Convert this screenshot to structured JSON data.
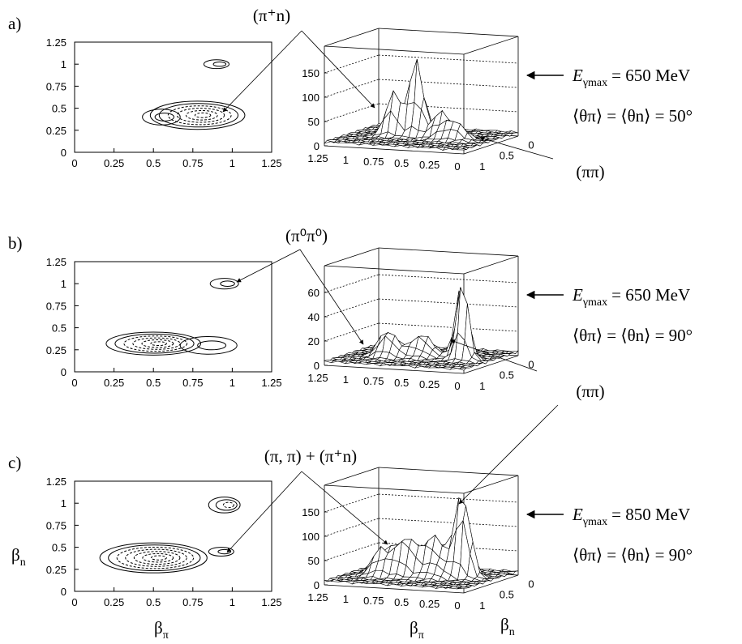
{
  "panels": [
    {
      "label": "a)",
      "annotation": "(π⁺n)",
      "contour": {
        "xticks": [
          0,
          0.25,
          0.5,
          0.75,
          1,
          1.25
        ],
        "yticks": [
          0,
          0.25,
          0.5,
          0.75,
          1,
          1.25
        ]
      },
      "surface": {
        "zticks": [
          0,
          50,
          100,
          150
        ],
        "xticks": [
          1.25,
          1,
          0.75,
          0.5,
          0.25,
          0
        ],
        "yticks": [
          1,
          0.5,
          0
        ]
      },
      "energy": {
        "symbol": "E",
        "subscript": "γmax",
        "text": "= 650 MeV"
      },
      "angles": "⟨θπ⟩ = ⟨θn⟩ = 50°",
      "side_annotation": "(ππ)"
    },
    {
      "label": "b)",
      "annotation": "(π⁰π⁰)",
      "contour": {
        "xticks": [
          0,
          0.25,
          0.5,
          0.75,
          1,
          1.25
        ],
        "yticks": [
          0,
          0.25,
          0.5,
          0.75,
          1,
          1.25
        ]
      },
      "surface": {
        "zticks": [
          0,
          20,
          40,
          60
        ],
        "xticks": [
          1.25,
          1,
          0.75,
          0.5,
          0.25,
          0
        ],
        "yticks": [
          1,
          0.5,
          0
        ]
      },
      "energy": {
        "symbol": "E",
        "subscript": "γmax",
        "text": "= 650 MeV"
      },
      "angles": "⟨θπ⟩ = ⟨θn⟩ = 90°",
      "side_annotation": "(ππ)"
    },
    {
      "label": "c)",
      "annotation": "(π, π) + (π⁺n)",
      "contour": {
        "xticks": [
          0,
          0.25,
          0.5,
          0.75,
          1,
          1.25
        ],
        "yticks": [
          0,
          0.25,
          0.5,
          0.75,
          1,
          1.25
        ]
      },
      "surface": {
        "zticks": [
          0,
          50,
          100,
          150
        ],
        "xticks": [
          1.25,
          1,
          0.75,
          0.5,
          0.25,
          0
        ],
        "yticks": [
          1,
          0.5,
          0
        ]
      },
      "energy": {
        "symbol": "E",
        "subscript": "γmax",
        "text": "= 850 MeV"
      },
      "angles": "⟨θπ⟩ = ⟨θn⟩ = 90°"
    }
  ],
  "axis_labels": {
    "beta_pi": {
      "symbol": "β",
      "subscript": "π"
    },
    "beta_n": {
      "symbol": "β",
      "subscript": "n"
    }
  }
}
